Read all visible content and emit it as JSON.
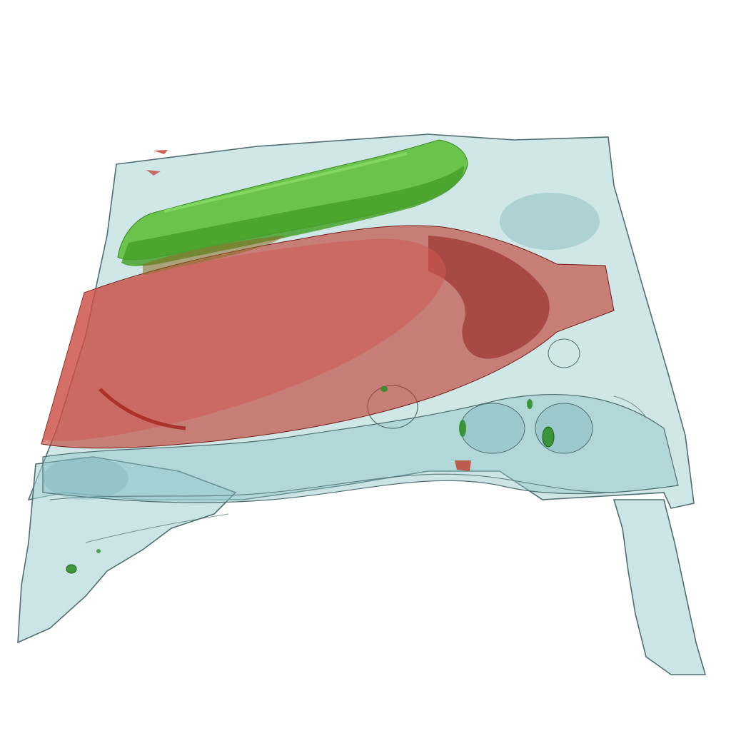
{
  "scene": {
    "background_color": "#ffffff",
    "structures": [
      {
        "name": "tissue-volume",
        "color": "#a9d3d6",
        "outline_color": "#4f6f70"
      },
      {
        "name": "tumor-mass",
        "color": "#c0392b",
        "outline_color": "#7a1d1a"
      },
      {
        "name": "muscle-bundle",
        "color": "#5fbf3a",
        "outline_color": "#3c8a26"
      },
      {
        "name": "small-inclusions",
        "color": "#2f8f2a",
        "outline_color": "#1e5e1a"
      }
    ]
  }
}
